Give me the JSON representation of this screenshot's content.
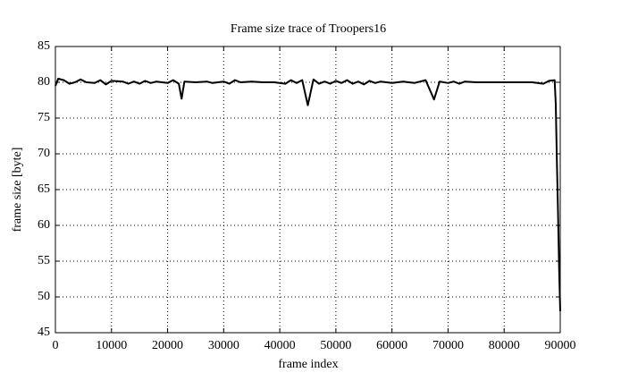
{
  "chart_data": {
    "type": "line",
    "title": "Frame size trace of Troopers16",
    "xlabel": "frame index",
    "ylabel": "frame size [byte]",
    "x": [
      0,
      500,
      1500,
      2500,
      3500,
      4500,
      5500,
      7000,
      8000,
      9000,
      10000,
      12000,
      13000,
      14000,
      15000,
      16000,
      17000,
      18000,
      20000,
      21000,
      22000,
      22500,
      23000,
      25000,
      27000,
      28000,
      30000,
      31000,
      32000,
      33000,
      35000,
      37000,
      39000,
      41000,
      42000,
      43000,
      44000,
      45000,
      46000,
      47000,
      48000,
      49000,
      50000,
      51000,
      52000,
      53000,
      54000,
      55000,
      56000,
      57000,
      58000,
      60000,
      62000,
      64000,
      66000,
      67500,
      68500,
      70000,
      71000,
      72000,
      73000,
      75000,
      80000,
      85000,
      87000,
      88000,
      89000,
      89200,
      89400,
      89600,
      89800,
      90000
    ],
    "series": [
      {
        "name": "frame size",
        "color": "#000000",
        "values": [
          79.5,
          80.5,
          80.3,
          79.8,
          80.0,
          80.4,
          80.0,
          79.9,
          80.3,
          79.7,
          80.2,
          80.1,
          79.8,
          80.1,
          79.8,
          80.2,
          79.9,
          80.1,
          79.9,
          80.3,
          79.8,
          77.7,
          80.1,
          80.0,
          80.1,
          79.9,
          80.1,
          79.8,
          80.3,
          80.0,
          80.1,
          80.0,
          80.0,
          79.8,
          80.3,
          79.9,
          80.3,
          76.8,
          80.4,
          79.8,
          80.1,
          79.8,
          80.2,
          79.9,
          80.3,
          79.8,
          80.1,
          79.7,
          80.2,
          79.9,
          80.1,
          79.9,
          80.1,
          79.9,
          80.3,
          77.6,
          80.1,
          79.9,
          80.1,
          79.8,
          80.1,
          80.0,
          80.0,
          80.0,
          79.8,
          80.2,
          80.3,
          77,
          69,
          62,
          54,
          48
        ]
      }
    ],
    "xlim": [
      0,
      90000
    ],
    "xticks": [
      0,
      10000,
      20000,
      30000,
      40000,
      50000,
      60000,
      70000,
      80000,
      90000
    ],
    "ylim": [
      45,
      85
    ],
    "yticks": [
      45,
      50,
      55,
      60,
      65,
      70,
      75,
      80,
      85
    ],
    "grid": true
  }
}
